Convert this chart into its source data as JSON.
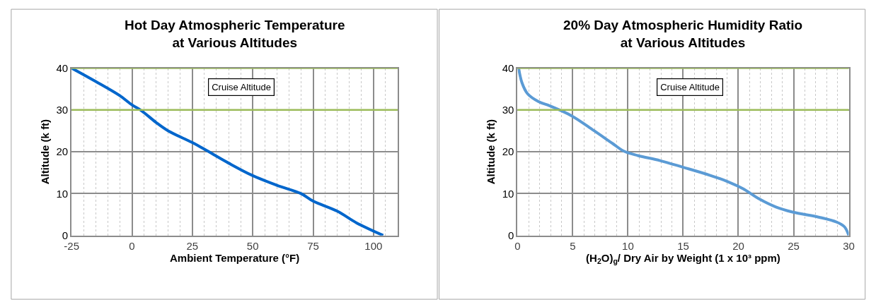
{
  "chart_data": [
    {
      "type": "line",
      "title": "Hot Day Atmospheric Temperature\nat Various Altitudes",
      "xlabel": "Ambient Temperature (°F)",
      "ylabel": "Altitude (k ft)",
      "x": [
        -25,
        -15,
        -5,
        0,
        4,
        10,
        15,
        25,
        30,
        40,
        50,
        60,
        70,
        75,
        85,
        93,
        104
      ],
      "series": [
        {
          "color": "#0066cc",
          "values": [
            40,
            36.8,
            33.4,
            31.2,
            29.8,
            27,
            25,
            22.2,
            20.6,
            17.3,
            14.3,
            12,
            10,
            8.2,
            5.8,
            3,
            0
          ]
        }
      ],
      "xlim": [
        -25,
        110
      ],
      "xticks": [
        -25,
        0,
        25,
        50,
        75,
        100
      ],
      "ylim": [
        0,
        40
      ],
      "yticks": [
        0,
        10,
        20,
        30,
        40
      ],
      "grid": true,
      "marker": "none",
      "line_style": "solid",
      "ref_lines": [
        {
          "axis": "y",
          "value": 30,
          "color": "#9bbb59"
        },
        {
          "axis": "y",
          "value": 40,
          "color": "#9bbb59"
        }
      ],
      "annotations": [
        "Cruise Altitude"
      ]
    },
    {
      "type": "line",
      "title": "20% Day Atmospheric Humidity Ratio\nat Various Altitudes",
      "xlabel": "(H$_{2}$O)$_{g}$/ Dry Air by Weight (1 x 10³ ppm)",
      "ylabel": "Altitude (k ft)",
      "x": [
        0.1,
        0.4,
        0.9,
        1.9,
        2.9,
        4.9,
        6.9,
        8.6,
        9.6,
        10.9,
        12.9,
        15,
        17.4,
        19.1,
        20.4,
        21.9,
        23.4,
        24.9,
        27.4,
        28.9,
        29.6,
        30
      ],
      "series": [
        {
          "color": "#5b9bd5",
          "values": [
            40,
            36.5,
            33.9,
            32,
            31,
            28.6,
            25.1,
            22,
            20.2,
            19.1,
            17.9,
            16.3,
            14.4,
            12.8,
            11.2,
            8.7,
            6.8,
            5.6,
            4.3,
            3.2,
            2.1,
            0
          ]
        }
      ],
      "xlim": [
        0,
        30
      ],
      "xticks": [
        0,
        5,
        10,
        15,
        20,
        25,
        30
      ],
      "ylim": [
        0,
        40
      ],
      "yticks": [
        0,
        10,
        20,
        30,
        40
      ],
      "grid": true,
      "marker": "none",
      "line_style": "solid",
      "ref_lines": [
        {
          "axis": "y",
          "value": 30,
          "color": "#9bbb59"
        },
        {
          "axis": "y",
          "value": 40,
          "color": "#9bbb59"
        }
      ],
      "annotations": [
        "Cruise Altitude"
      ]
    }
  ]
}
